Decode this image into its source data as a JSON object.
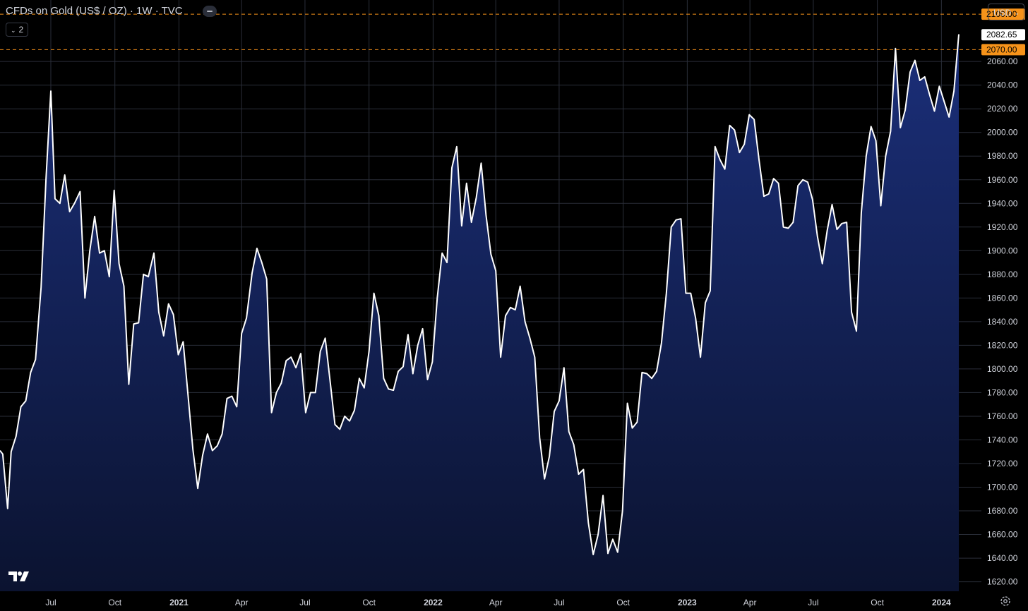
{
  "header": {
    "title": "CFDs on Gold (US$ / OZ) · 1W · TVC",
    "legend_toggle_label": "2",
    "currency": "USD"
  },
  "icons": {
    "logo": "tradingview-logo-icon",
    "settings": "settings-gear-icon",
    "collapse": "minus-icon",
    "dropdown": "chevron-down-icon"
  },
  "colors": {
    "background": "#000000",
    "line": "#ffffff",
    "fill_top": "#1b2f7a",
    "fill_bottom": "#0b1330",
    "grid": "#2a2e39",
    "alert": "#f7931a",
    "text": "#d1d4dc"
  },
  "chart_data": {
    "type": "area",
    "ylim": [
      1612,
      2112
    ],
    "y_ticks": [
      1620,
      1640,
      1660,
      1680,
      1700,
      1720,
      1740,
      1760,
      1780,
      1800,
      1820,
      1840,
      1860,
      1880,
      1900,
      1920,
      1940,
      1960,
      1980,
      2000,
      2020,
      2040,
      2060
    ],
    "y_tick_labels": [
      "1620.00",
      "1640.00",
      "1660.00",
      "1680.00",
      "1700.00",
      "1720.00",
      "1740.00",
      "1760.00",
      "1780.00",
      "1800.00",
      "1820.00",
      "1840.00",
      "1860.00",
      "1880.00",
      "1900.00",
      "1920.00",
      "1940.00",
      "1960.00",
      "1980.00",
      "2000.00",
      "2020.00",
      "2040.00",
      "2060.00"
    ],
    "x_ticks": [
      {
        "label": "Jul",
        "date": "2020-07-01",
        "bold": false
      },
      {
        "label": "Oct",
        "date": "2020-10-01",
        "bold": false
      },
      {
        "label": "2021",
        "date": "2021-01-01",
        "bold": true
      },
      {
        "label": "Apr",
        "date": "2021-04-01",
        "bold": false
      },
      {
        "label": "Jul",
        "date": "2021-07-01",
        "bold": false
      },
      {
        "label": "Oct",
        "date": "2021-10-01",
        "bold": false
      },
      {
        "label": "2022",
        "date": "2022-01-01",
        "bold": true
      },
      {
        "label": "Apr",
        "date": "2022-04-01",
        "bold": false
      },
      {
        "label": "Jul",
        "date": "2022-07-01",
        "bold": false
      },
      {
        "label": "Oct",
        "date": "2022-10-01",
        "bold": false
      },
      {
        "label": "2023",
        "date": "2023-01-01",
        "bold": true
      },
      {
        "label": "Apr",
        "date": "2023-04-01",
        "bold": false
      },
      {
        "label": "Jul",
        "date": "2023-07-01",
        "bold": false
      },
      {
        "label": "Oct",
        "date": "2023-10-01",
        "bold": false
      },
      {
        "label": "2024",
        "date": "2024-01-01",
        "bold": true
      }
    ],
    "alert_levels": [
      {
        "value": 2100.0,
        "label": "2100.00"
      },
      {
        "value": 2070.0,
        "label": "2070.00"
      }
    ],
    "last_price": {
      "value": 2082.65,
      "label": "2082.65"
    },
    "series": [
      {
        "points": [
          [
            "2020-04-19",
            1731
          ],
          [
            "2020-04-23",
            1728
          ],
          [
            "2020-04-30",
            1682
          ],
          [
            "2020-05-05",
            1730
          ],
          [
            "2020-05-12",
            1743
          ],
          [
            "2020-05-19",
            1768
          ],
          [
            "2020-05-26",
            1773
          ],
          [
            "2020-06-02",
            1797
          ],
          [
            "2020-06-09",
            1808
          ],
          [
            "2020-06-17",
            1869
          ],
          [
            "2020-06-24",
            1960
          ],
          [
            "2020-07-01",
            2035
          ],
          [
            "2020-07-07",
            1944
          ],
          [
            "2020-07-14",
            1940
          ],
          [
            "2020-07-21",
            1964
          ],
          [
            "2020-07-28",
            1933
          ],
          [
            "2020-08-04",
            1940
          ],
          [
            "2020-08-12",
            1950
          ],
          [
            "2020-08-19",
            1860
          ],
          [
            "2020-08-26",
            1900
          ],
          [
            "2020-09-02",
            1929
          ],
          [
            "2020-09-09",
            1898
          ],
          [
            "2020-09-16",
            1900
          ],
          [
            "2020-09-23",
            1878
          ],
          [
            "2020-09-30",
            1951
          ],
          [
            "2020-10-07",
            1889
          ],
          [
            "2020-10-14",
            1870
          ],
          [
            "2020-10-21",
            1787
          ],
          [
            "2020-10-28",
            1838
          ],
          [
            "2020-11-04",
            1839
          ],
          [
            "2020-11-11",
            1880
          ],
          [
            "2020-11-18",
            1878
          ],
          [
            "2020-11-26",
            1898
          ],
          [
            "2020-12-03",
            1848
          ],
          [
            "2020-12-10",
            1828
          ],
          [
            "2020-12-17",
            1855
          ],
          [
            "2020-12-24",
            1846
          ],
          [
            "2020-12-31",
            1812
          ],
          [
            "2021-01-07",
            1823
          ],
          [
            "2021-01-14",
            1778
          ],
          [
            "2021-01-21",
            1732
          ],
          [
            "2021-01-28",
            1699
          ],
          [
            "2021-02-04",
            1727
          ],
          [
            "2021-02-11",
            1745
          ],
          [
            "2021-02-18",
            1731
          ],
          [
            "2021-02-25",
            1735
          ],
          [
            "2021-03-04",
            1745
          ],
          [
            "2021-03-11",
            1775
          ],
          [
            "2021-03-18",
            1777
          ],
          [
            "2021-03-25",
            1768
          ],
          [
            "2021-04-01",
            1830
          ],
          [
            "2021-04-08",
            1843
          ],
          [
            "2021-04-16",
            1881
          ],
          [
            "2021-04-23",
            1902
          ],
          [
            "2021-04-30",
            1890
          ],
          [
            "2021-05-07",
            1876
          ],
          [
            "2021-05-14",
            1763
          ],
          [
            "2021-05-21",
            1780
          ],
          [
            "2021-05-28",
            1788
          ],
          [
            "2021-06-04",
            1807
          ],
          [
            "2021-06-11",
            1810
          ],
          [
            "2021-06-18",
            1801
          ],
          [
            "2021-06-25",
            1813
          ],
          [
            "2021-07-02",
            1763
          ],
          [
            "2021-07-09",
            1780
          ],
          [
            "2021-07-16",
            1780
          ],
          [
            "2021-07-23",
            1815
          ],
          [
            "2021-07-30",
            1826
          ],
          [
            "2021-08-06",
            1790
          ],
          [
            "2021-08-13",
            1753
          ],
          [
            "2021-08-20",
            1749
          ],
          [
            "2021-08-27",
            1760
          ],
          [
            "2021-09-03",
            1756
          ],
          [
            "2021-09-10",
            1765
          ],
          [
            "2021-09-17",
            1792
          ],
          [
            "2021-09-24",
            1784
          ],
          [
            "2021-10-01",
            1815
          ],
          [
            "2021-10-08",
            1864
          ],
          [
            "2021-10-15",
            1845
          ],
          [
            "2021-10-22",
            1792
          ],
          [
            "2021-10-29",
            1783
          ],
          [
            "2021-11-05",
            1782
          ],
          [
            "2021-11-12",
            1798
          ],
          [
            "2021-11-19",
            1802
          ],
          [
            "2021-11-26",
            1829
          ],
          [
            "2021-12-03",
            1796
          ],
          [
            "2021-12-10",
            1820
          ],
          [
            "2021-12-17",
            1834
          ],
          [
            "2021-12-24",
            1791
          ],
          [
            "2021-12-31",
            1806
          ],
          [
            "2022-01-07",
            1860
          ],
          [
            "2022-01-14",
            1898
          ],
          [
            "2022-01-21",
            1890
          ],
          [
            "2022-01-28",
            1970
          ],
          [
            "2022-02-04",
            1988
          ],
          [
            "2022-02-11",
            1921
          ],
          [
            "2022-02-18",
            1957
          ],
          [
            "2022-02-25",
            1924
          ],
          [
            "2022-03-04",
            1945
          ],
          [
            "2022-03-11",
            1974
          ],
          [
            "2022-03-18",
            1930
          ],
          [
            "2022-03-25",
            1897
          ],
          [
            "2022-04-01",
            1883
          ],
          [
            "2022-04-08",
            1810
          ],
          [
            "2022-04-15",
            1845
          ],
          [
            "2022-04-22",
            1852
          ],
          [
            "2022-04-29",
            1850
          ],
          [
            "2022-05-06",
            1870
          ],
          [
            "2022-05-13",
            1840
          ],
          [
            "2022-05-20",
            1826
          ],
          [
            "2022-05-27",
            1810
          ],
          [
            "2022-06-03",
            1742
          ],
          [
            "2022-06-10",
            1707
          ],
          [
            "2022-06-17",
            1726
          ],
          [
            "2022-06-24",
            1764
          ],
          [
            "2022-07-01",
            1773
          ],
          [
            "2022-07-08",
            1801
          ],
          [
            "2022-07-15",
            1747
          ],
          [
            "2022-07-22",
            1736
          ],
          [
            "2022-07-29",
            1711
          ],
          [
            "2022-08-05",
            1715
          ],
          [
            "2022-08-12",
            1670
          ],
          [
            "2022-08-19",
            1643
          ],
          [
            "2022-08-26",
            1660
          ],
          [
            "2022-09-02",
            1693
          ],
          [
            "2022-09-09",
            1644
          ],
          [
            "2022-09-16",
            1656
          ],
          [
            "2022-09-23",
            1645
          ],
          [
            "2022-09-30",
            1680
          ],
          [
            "2022-10-07",
            1771
          ],
          [
            "2022-10-14",
            1750
          ],
          [
            "2022-10-21",
            1755
          ],
          [
            "2022-10-28",
            1797
          ],
          [
            "2022-11-04",
            1796
          ],
          [
            "2022-11-11",
            1792
          ],
          [
            "2022-11-18",
            1798
          ],
          [
            "2022-11-25",
            1822
          ],
          [
            "2022-12-02",
            1864
          ],
          [
            "2022-12-09",
            1920
          ],
          [
            "2022-12-16",
            1926
          ],
          [
            "2022-12-23",
            1927
          ],
          [
            "2022-12-30",
            1864
          ],
          [
            "2023-01-06",
            1864
          ],
          [
            "2023-01-13",
            1843
          ],
          [
            "2023-01-20",
            1810
          ],
          [
            "2023-01-27",
            1856
          ],
          [
            "2023-02-03",
            1866
          ],
          [
            "2023-02-10",
            1988
          ],
          [
            "2023-02-17",
            1977
          ],
          [
            "2023-02-24",
            1969
          ],
          [
            "2023-03-03",
            2006
          ],
          [
            "2023-03-10",
            2002
          ],
          [
            "2023-03-17",
            1983
          ],
          [
            "2023-03-24",
            1990
          ],
          [
            "2023-03-31",
            2015
          ],
          [
            "2023-04-07",
            2011
          ],
          [
            "2023-04-14",
            1977
          ],
          [
            "2023-04-21",
            1946
          ],
          [
            "2023-04-28",
            1948
          ],
          [
            "2023-05-05",
            1961
          ],
          [
            "2023-05-12",
            1957
          ],
          [
            "2023-05-19",
            1920
          ],
          [
            "2023-05-26",
            1919
          ],
          [
            "2023-06-02",
            1924
          ],
          [
            "2023-06-09",
            1955
          ],
          [
            "2023-06-16",
            1960
          ],
          [
            "2023-06-23",
            1958
          ],
          [
            "2023-06-30",
            1943
          ],
          [
            "2023-07-07",
            1912
          ],
          [
            "2023-07-14",
            1889
          ],
          [
            "2023-07-21",
            1917
          ],
          [
            "2023-07-28",
            1939
          ],
          [
            "2023-08-04",
            1918
          ],
          [
            "2023-08-11",
            1923
          ],
          [
            "2023-08-18",
            1924
          ],
          [
            "2023-08-25",
            1848
          ],
          [
            "2023-09-01",
            1832
          ],
          [
            "2023-09-08",
            1932
          ],
          [
            "2023-09-15",
            1980
          ],
          [
            "2023-09-22",
            2005
          ],
          [
            "2023-09-29",
            1993
          ],
          [
            "2023-10-06",
            1938
          ],
          [
            "2023-10-13",
            1980
          ],
          [
            "2023-10-20",
            2001
          ],
          [
            "2023-10-27",
            2071
          ],
          [
            "2023-11-03",
            2004
          ],
          [
            "2023-11-10",
            2019
          ],
          [
            "2023-11-17",
            2051
          ],
          [
            "2023-11-24",
            2061
          ],
          [
            "2023-12-01",
            2044
          ],
          [
            "2023-12-08",
            2047
          ],
          [
            "2023-12-15",
            2032
          ],
          [
            "2023-12-22",
            2018
          ],
          [
            "2023-12-29",
            2039
          ],
          [
            "2024-01-05",
            2026
          ],
          [
            "2024-01-12",
            2013
          ],
          [
            "2024-01-19",
            2035
          ],
          [
            "2024-01-26",
            2083
          ]
        ]
      }
    ]
  }
}
